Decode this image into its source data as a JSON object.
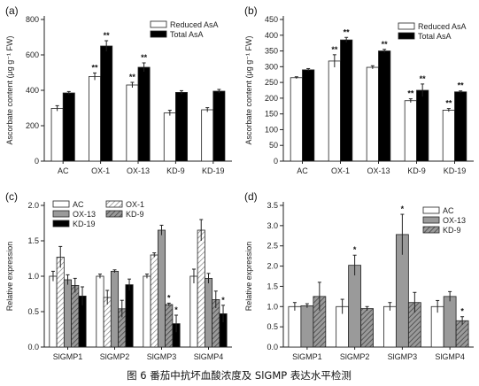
{
  "caption": "图 6 番茄中抗坏血酸浓度及 SlGMP 表达水平检测",
  "colors": {
    "reduced": "#ffffff",
    "total": "#000000",
    "ac": "#ffffff",
    "ox1_hatch": "#8a8a8a",
    "ox13": "#9a9a9a",
    "kd9_hatch": "#6e6e6e",
    "kd19": "#000000"
  },
  "chart_data": [
    {
      "panel": "(a)",
      "type": "bar",
      "ylabel": "Ascorbate content (μg g⁻¹ FW)",
      "ylim": [
        0,
        800
      ],
      "yticks": [
        "0",
        "200",
        "400",
        "600",
        "800"
      ],
      "categories": [
        "AC",
        "OX-1",
        "OX-13",
        "KD-9",
        "KD-19"
      ],
      "series": [
        {
          "name": "Reduced AsA",
          "style": "white",
          "values": [
            298,
            478,
            430,
            272,
            290
          ],
          "errors": [
            15,
            20,
            15,
            15,
            12
          ]
        },
        {
          "name": "Total AsA",
          "style": "black",
          "values": [
            385,
            650,
            530,
            388,
            395
          ],
          "errors": [
            8,
            30,
            25,
            10,
            10
          ]
        }
      ],
      "stars": [
        [
          "",
          "**",
          "**",
          "",
          ""
        ],
        [
          "",
          "**",
          "**",
          "",
          ""
        ]
      ]
    },
    {
      "panel": "(b)",
      "type": "bar",
      "ylabel": "Ascorbate content (μg g⁻¹ FW)",
      "ylim": [
        0,
        450
      ],
      "yticks": [
        "0",
        "50",
        "100",
        "150",
        "200",
        "250",
        "300",
        "350",
        "400",
        "450"
      ],
      "categories": [
        "AC",
        "OX-1",
        "OX-13",
        "KD-9",
        "KD-19"
      ],
      "series": [
        {
          "name": "Reduced AsA",
          "style": "white",
          "values": [
            265,
            318,
            298,
            192,
            162
          ],
          "errors": [
            3,
            20,
            5,
            6,
            5
          ]
        },
        {
          "name": "Total AsA",
          "style": "black",
          "values": [
            290,
            385,
            350,
            225,
            220
          ],
          "errors": [
            4,
            8,
            5,
            20,
            3
          ]
        }
      ],
      "stars": [
        [
          "",
          "**",
          "",
          "**",
          "**"
        ],
        [
          "",
          "**",
          "**",
          "**",
          "**"
        ]
      ]
    },
    {
      "panel": "(c)",
      "type": "bar",
      "ylabel": "Relative expression",
      "ylim": [
        0,
        2.0
      ],
      "yticks": [
        "0.0",
        "0.5",
        "1.0",
        "1.5",
        "2.0"
      ],
      "categories": [
        "SlGMP1",
        "SlGMP2",
        "SlGMP3",
        "SlGMP4"
      ],
      "series": [
        {
          "name": "AC",
          "style": "white",
          "values": [
            1.0,
            1.0,
            1.0,
            1.0
          ],
          "errors": [
            0.07,
            0.03,
            0.03,
            0.1
          ]
        },
        {
          "name": "OX-1",
          "style": "hatch-light",
          "values": [
            1.27,
            0.7,
            1.3,
            1.65
          ],
          "errors": [
            0.15,
            0.1,
            0.03,
            0.15
          ]
        },
        {
          "name": "OX-13",
          "style": "gray",
          "values": [
            0.95,
            1.07,
            1.65,
            0.97
          ],
          "errors": [
            0.07,
            0.02,
            0.07,
            0.07
          ]
        },
        {
          "name": "KD-9",
          "style": "hatch-dark",
          "values": [
            0.87,
            0.54,
            0.6,
            0.67
          ],
          "errors": [
            0.1,
            0.12,
            0.02,
            0.12
          ]
        },
        {
          "name": "KD-19",
          "style": "black",
          "values": [
            0.72,
            0.88,
            0.33,
            0.47
          ],
          "errors": [
            0.13,
            0.08,
            0.12,
            0.12
          ]
        }
      ],
      "stars": [
        [
          "",
          "",
          "",
          ""
        ],
        [
          "",
          "",
          "",
          ""
        ],
        [
          "",
          "",
          "",
          ""
        ],
        [
          "",
          "",
          "*",
          ""
        ],
        [
          "",
          "",
          "*",
          "*"
        ]
      ]
    },
    {
      "panel": "(d)",
      "type": "bar",
      "ylabel": "Relative expression",
      "ylim": [
        0,
        3.5
      ],
      "yticks": [
        "0.0",
        "0.5",
        "1.0",
        "1.5",
        "2.0",
        "2.5",
        "3.0",
        "3.5"
      ],
      "categories": [
        "SlGMP1",
        "SlGMP2",
        "SlGMP3",
        "SlGMP4"
      ],
      "series": [
        {
          "name": "AC",
          "style": "white",
          "values": [
            1.0,
            1.0,
            1.0,
            1.0
          ],
          "errors": [
            0.1,
            0.18,
            0.1,
            0.15
          ]
        },
        {
          "name": "OX-13",
          "style": "gray",
          "values": [
            1.02,
            2.02,
            2.78,
            1.25
          ],
          "errors": [
            0.05,
            0.25,
            0.5,
            0.12
          ]
        },
        {
          "name": "KD-9",
          "style": "hatch-dark",
          "values": [
            1.25,
            0.95,
            1.1,
            0.65
          ],
          "errors": [
            0.35,
            0.05,
            0.25,
            0.1
          ]
        }
      ],
      "stars": [
        [
          "",
          "",
          "",
          ""
        ],
        [
          "",
          "*",
          "*",
          ""
        ],
        [
          "",
          "",
          "",
          "*"
        ]
      ]
    }
  ]
}
